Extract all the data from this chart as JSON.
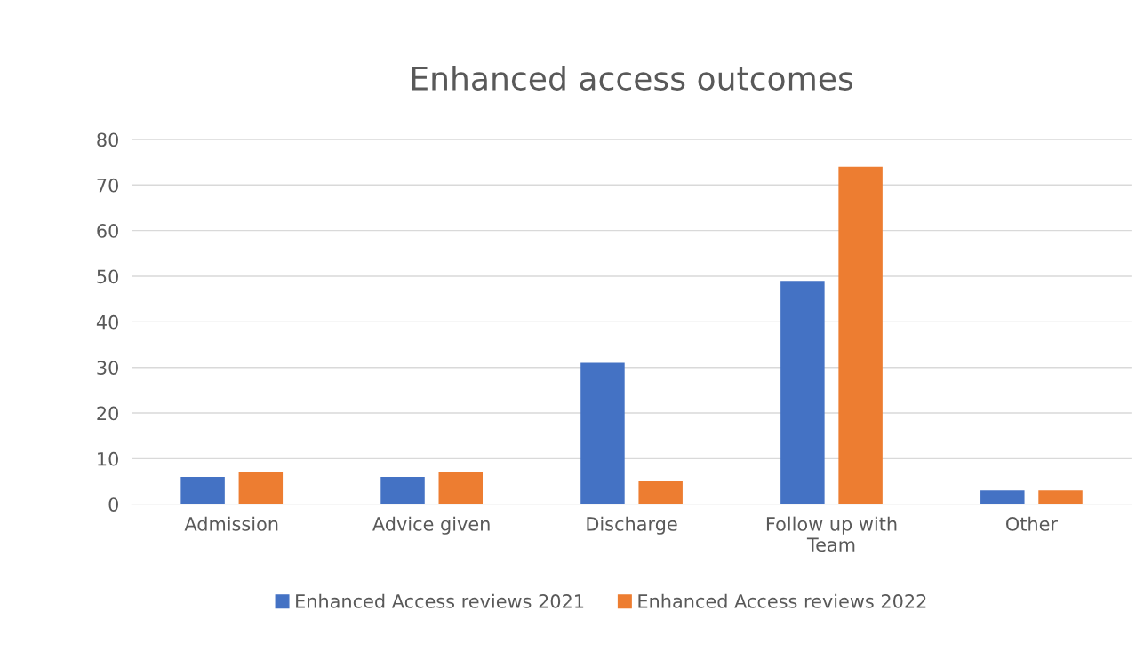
{
  "chart_data": {
    "type": "bar",
    "title": "Enhanced access outcomes",
    "categories": [
      "Admission",
      "Advice given",
      "Discharge",
      "Follow up with\nTeam",
      "Other"
    ],
    "series": [
      {
        "name": "Enhanced Access reviews 2021",
        "color": "#4472c4",
        "values": [
          6,
          6,
          31,
          49,
          3
        ]
      },
      {
        "name": "Enhanced Access reviews 2022",
        "color": "#ed7d31",
        "values": [
          7,
          7,
          5,
          74,
          3
        ]
      }
    ],
    "ylim": [
      0,
      80
    ],
    "yticks": [
      0,
      10,
      20,
      30,
      40,
      50,
      60,
      70,
      80
    ],
    "grid": "y",
    "legend": "bottom"
  }
}
